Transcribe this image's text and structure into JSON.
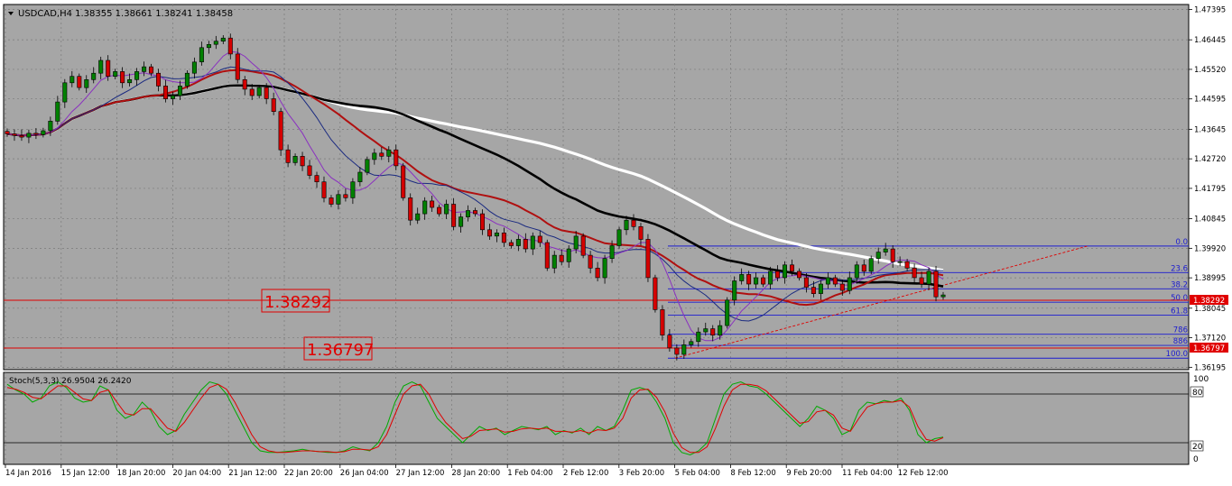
{
  "header": {
    "symbol_text": "USDCAD,H4  1.38355 1.38661 1.38241 1.38458"
  },
  "stoch": {
    "title": "Stoch(5,3,3) 26.9504 26.2420",
    "levels": [
      "100",
      "80",
      "20",
      "0"
    ]
  },
  "price_axis": {
    "ticks": [
      "1.47395",
      "1.46445",
      "1.45520",
      "1.44595",
      "1.43645",
      "1.42720",
      "1.41795",
      "1.40845",
      "1.39920",
      "1.38995",
      "1.38045",
      "1.37120",
      "1.36195"
    ]
  },
  "time_axis": {
    "labels": [
      "14 Jan 2016",
      "15 Jan 12:00",
      "18 Jan 20:00",
      "20 Jan 04:00",
      "21 Jan 12:00",
      "22 Jan 20:00",
      "26 Jan 04:00",
      "27 Jan 12:00",
      "28 Jan 20:00",
      "1 Feb 04:00",
      "2 Feb 12:00",
      "3 Feb 20:00",
      "5 Feb 04:00",
      "8 Feb 12:00",
      "9 Feb 20:00",
      "11 Feb 04:00",
      "12 Feb 12:00"
    ]
  },
  "levels": {
    "lower": {
      "text": "1.36797",
      "value": 1.36797,
      "axis_text": "1.36797"
    },
    "upper": {
      "text": "1.38292",
      "value": 1.38292,
      "axis_text": "1.38292"
    }
  },
  "fibo": {
    "levels": [
      {
        "label": "0.0",
        "value": 1.3999
      },
      {
        "label": "23.6",
        "value": 1.3916
      },
      {
        "label": "38.2",
        "value": 1.3865
      },
      {
        "label": "50.0",
        "value": 1.3823
      },
      {
        "label": "61.8",
        "value": 1.3783
      },
      {
        "label": "786",
        "value": 1.3723
      },
      {
        "label": "886",
        "value": 1.3688
      },
      {
        "label": "100.0",
        "value": 1.3648
      }
    ]
  },
  "colors": {
    "background": "#a6a6a6",
    "bull": "#008000",
    "bear": "#d40000",
    "ma_black": "#000000",
    "ma_white": "#ffffff",
    "ma_red": "#b01010",
    "ma_navy": "#1a2a80",
    "ma_purple": "#8a30c0",
    "stoch_main": "#00aa00",
    "stoch_signal": "#e00000",
    "fibo": "#1c1cd0",
    "level": "#e00000"
  },
  "chart_data": {
    "type": "candlestick",
    "symbol": "USDCAD",
    "timeframe": "H4",
    "ylim": [
      1.3612,
      1.4755
    ],
    "close_series": [
      1.435,
      1.4345,
      1.434,
      1.4352,
      1.4348,
      1.436,
      1.439,
      1.445,
      1.451,
      1.453,
      1.4495,
      1.452,
      1.454,
      1.458,
      1.453,
      1.4545,
      1.451,
      1.452,
      1.4545,
      1.456,
      1.454,
      1.45,
      1.446,
      1.447,
      1.45,
      1.454,
      1.4575,
      1.462,
      1.463,
      1.464,
      1.465,
      1.46,
      1.452,
      1.449,
      1.447,
      1.4495,
      1.446,
      1.442,
      1.43,
      1.426,
      1.428,
      1.425,
      1.422,
      1.42,
      1.415,
      1.413,
      1.416,
      1.415,
      1.42,
      1.423,
      1.427,
      1.429,
      1.428,
      1.43,
      1.425,
      1.415,
      1.408,
      1.41,
      1.414,
      1.412,
      1.41,
      1.413,
      1.406,
      1.409,
      1.411,
      1.41,
      1.405,
      1.403,
      1.404,
      1.401,
      1.4,
      1.402,
      1.399,
      1.403,
      1.401,
      1.393,
      1.397,
      1.395,
      1.399,
      1.403,
      1.397,
      1.393,
      1.39,
      1.396,
      1.4,
      1.405,
      1.408,
      1.406,
      1.402,
      1.39,
      1.38,
      1.372,
      1.368,
      1.366,
      1.369,
      1.37,
      1.373,
      1.374,
      1.372,
      1.375,
      1.383,
      1.389,
      1.391,
      1.388,
      1.39,
      1.388,
      1.392,
      1.39,
      1.394,
      1.392,
      1.39,
      1.387,
      1.385,
      1.388,
      1.39,
      1.388,
      1.386,
      1.39,
      1.394,
      1.392,
      1.396,
      1.398,
      1.399,
      1.395,
      1.395,
      1.393,
      1.39,
      1.388,
      1.392,
      1.384,
      1.3846
    ],
    "series": [
      {
        "values_kind": "stoch_main",
        "values": [
          92,
          85,
          80,
          70,
          75,
          90,
          95,
          88,
          75,
          70,
          72,
          90,
          85,
          60,
          50,
          55,
          70,
          60,
          40,
          30,
          35,
          55,
          70,
          85,
          95,
          92,
          80,
          60,
          40,
          20,
          10,
          8,
          8,
          9,
          10,
          12,
          10,
          9,
          8,
          8,
          10,
          15,
          12,
          10,
          20,
          40,
          70,
          90,
          95,
          90,
          70,
          50,
          40,
          30,
          20,
          30,
          40,
          35,
          38,
          30,
          35,
          40,
          38,
          36,
          40,
          30,
          35,
          32,
          38,
          30,
          40,
          35,
          40,
          60,
          85,
          88,
          85,
          70,
          50,
          20,
          8,
          5,
          10,
          20,
          50,
          80,
          92,
          95,
          90,
          88,
          80,
          70,
          60,
          50,
          40,
          50,
          65,
          60,
          50,
          30,
          35,
          60,
          70,
          68,
          72,
          70,
          75,
          60,
          30,
          20,
          25,
          26.95
        ]
      },
      {
        "values_kind": "stoch_signal",
        "values": [
          88,
          86,
          82,
          76,
          74,
          82,
          90,
          90,
          82,
          74,
          72,
          82,
          85,
          70,
          56,
          54,
          62,
          62,
          50,
          38,
          34,
          45,
          60,
          75,
          88,
          92,
          86,
          70,
          50,
          30,
          15,
          10,
          8,
          8,
          9,
          10,
          10,
          9,
          9,
          8,
          9,
          12,
          12,
          11,
          15,
          30,
          55,
          80,
          90,
          92,
          80,
          60,
          45,
          35,
          25,
          28,
          35,
          36,
          37,
          33,
          34,
          37,
          38,
          37,
          38,
          34,
          34,
          33,
          35,
          32,
          36,
          35,
          38,
          50,
          75,
          85,
          86,
          76,
          58,
          32,
          14,
          8,
          8,
          15,
          38,
          65,
          85,
          92,
          92,
          90,
          84,
          74,
          64,
          54,
          44,
          46,
          58,
          60,
          54,
          38,
          34,
          50,
          64,
          68,
          70,
          70,
          72,
          64,
          40,
          24,
          22,
          26.24
        ]
      }
    ]
  }
}
